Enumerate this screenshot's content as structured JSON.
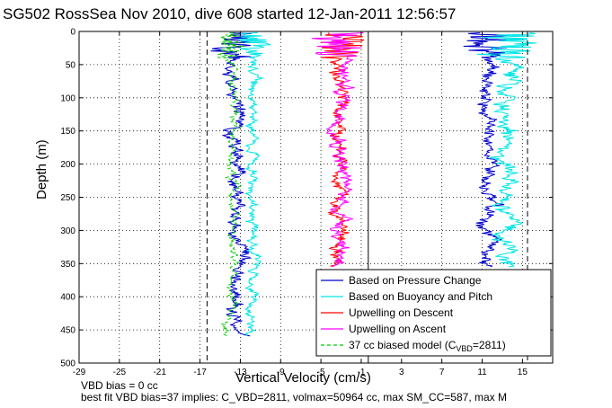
{
  "chart_data": {
    "type": "line",
    "title": "SG502 RossSea Nov 2010, dive 608 started 12-Jan-2011 12:56:57",
    "xlabel": "Vertical Velocity (cm/s)",
    "ylabel": "Depth (m)",
    "xlim": [
      -29,
      18
    ],
    "ylim": [
      500,
      0
    ],
    "xticks": [
      -29,
      -25,
      -21,
      -17,
      -13,
      -9,
      -5,
      -1,
      3,
      7,
      11,
      15
    ],
    "yticks": [
      0,
      50,
      100,
      150,
      200,
      250,
      300,
      350,
      400,
      450,
      500
    ],
    "grid": true,
    "legend_position": "bottom-right",
    "legend": [
      {
        "label": "Based on Pressure Change",
        "color": "#0000cc",
        "style": "solid"
      },
      {
        "label": "Based on Buoyancy and Pitch",
        "color": "#00e5e5",
        "style": "solid"
      },
      {
        "label": "Upwelling on Descent",
        "color": "#ff0000",
        "style": "solid"
      },
      {
        "label": "Upwelling on Ascent",
        "color": "#ff00ff",
        "style": "solid"
      },
      {
        "label": "37 cc biased model (C",
        "label_sub": "VBD",
        "label_tail": "=2811)",
        "color": "#00cc00",
        "style": "dashed"
      }
    ],
    "reference_lines": [
      {
        "x": -16.3,
        "style": "dashed",
        "color": "#000000"
      },
      {
        "x": -0.3,
        "style": "solid",
        "color": "#000000"
      },
      {
        "x": 15.5,
        "style": "dashed",
        "color": "#000000"
      }
    ],
    "series": [
      {
        "name": "Based on Pressure Change",
        "color": "#0000cc",
        "group": "descent",
        "x_center": -13.5,
        "depth_range": [
          2,
          460
        ],
        "amplitude": 0.7
      },
      {
        "name": "Based on Buoyancy and Pitch",
        "color": "#00e5e5",
        "group": "descent",
        "x_center": -11.8,
        "depth_range": [
          2,
          460
        ],
        "amplitude": 0.5
      },
      {
        "name": "Upwelling on Descent",
        "color": "#ff0000",
        "group": "upwelling",
        "x_center": -3.2,
        "depth_range": [
          2,
          355
        ],
        "amplitude": 0.7
      },
      {
        "name": "Upwelling on Ascent",
        "color": "#ff00ff",
        "group": "upwelling",
        "x_center": -2.8,
        "depth_range": [
          2,
          355
        ],
        "amplitude": 0.8
      },
      {
        "name": "Based on Pressure Change",
        "color": "#0000cc",
        "group": "ascent",
        "x_center": 11.5,
        "depth_range": [
          2,
          355
        ],
        "amplitude": 0.7
      },
      {
        "name": "Based on Buoyancy and Pitch",
        "color": "#00e5e5",
        "group": "ascent",
        "x_center": 13.5,
        "depth_range": [
          2,
          355
        ],
        "amplitude": 1.0
      },
      {
        "name": "37 cc biased model (CVBD=2811)",
        "color": "#00cc00",
        "group": "model",
        "x_center": -13.8,
        "depth_range": [
          2,
          460
        ],
        "amplitude": 0.4
      }
    ]
  },
  "footer": {
    "line1": "VBD bias = 0 cc",
    "line2": "best fit VBD bias=37 implies: C_VBD=2811, volmax=50964 cc, max SM_CC=587, max M"
  }
}
